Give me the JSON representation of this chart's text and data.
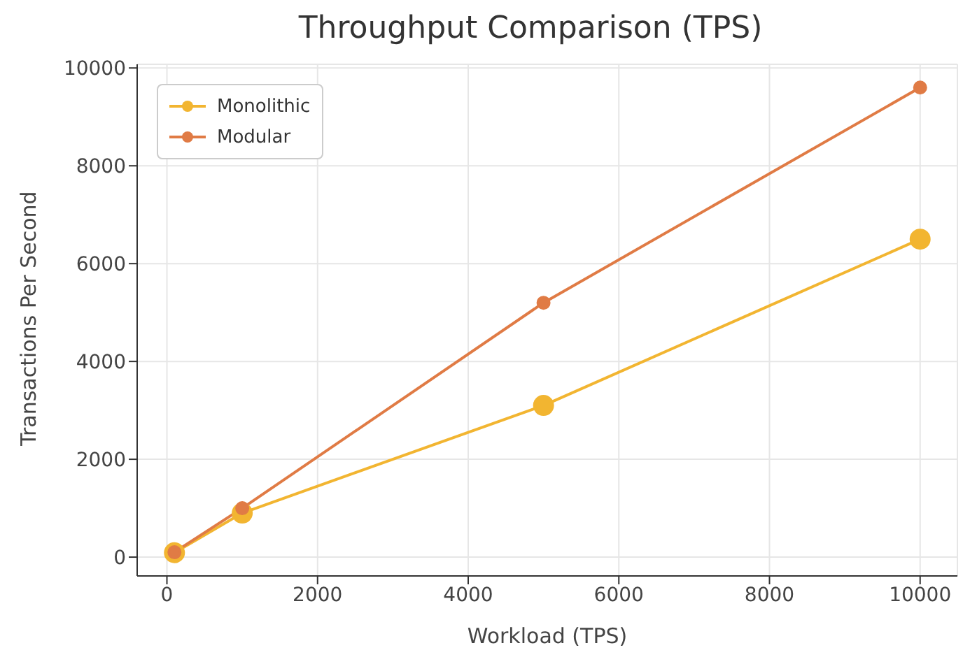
{
  "chart_data": {
    "type": "line",
    "title": "Throughput Comparison (TPS)",
    "xlabel": "Workload (TPS)",
    "ylabel": "Transactions Per Second",
    "x": [
      100,
      1000,
      5000,
      10000
    ],
    "series": [
      {
        "name": "Monolithic",
        "color": "#f2b531",
        "values": [
          90,
          900,
          3100,
          6500
        ]
      },
      {
        "name": "Modular",
        "color": "#e07b45",
        "values": [
          100,
          1000,
          5200,
          9600
        ]
      }
    ],
    "xlim": [
      -395,
      10495
    ],
    "xticks": [
      0,
      2000,
      4000,
      6000,
      8000,
      10000
    ],
    "ylim": [
      -385,
      10075
    ],
    "yticks": [
      0,
      2000,
      4000,
      6000,
      8000,
      10000
    ],
    "grid": true,
    "legend": "top left",
    "marker": "circle",
    "line_style": "solid"
  }
}
